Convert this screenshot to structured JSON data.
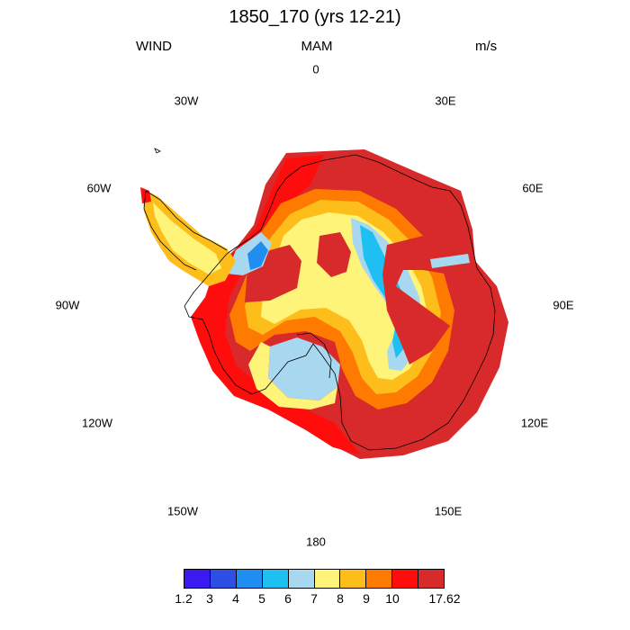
{
  "header": {
    "title": "1850_170 (yrs 12-21)",
    "left": "WIND",
    "center": "MAM",
    "right": "m/s"
  },
  "longitude_labels": [
    "0",
    "30E",
    "60E",
    "90E",
    "120E",
    "150E",
    "180",
    "150W",
    "120W",
    "90W",
    "60W",
    "30W"
  ],
  "colorbar": {
    "colors": [
      "#3a1af0",
      "#2d4fe6",
      "#1f8ef0",
      "#1ec0f2",
      "#a8d8f0",
      "#fff47a",
      "#fdbe1c",
      "#ff7a00",
      "#ff0d0d",
      "#d82a2a"
    ],
    "labels": [
      "1.2",
      "3",
      "4",
      "5",
      "6",
      "7",
      "8",
      "9",
      "10",
      "17.62"
    ]
  }
}
